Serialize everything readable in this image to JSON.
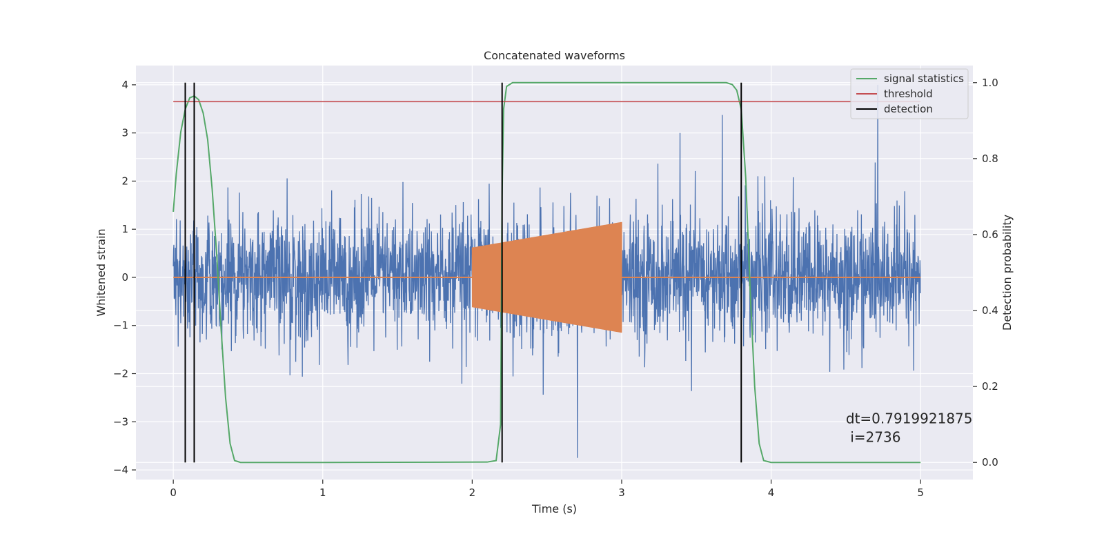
{
  "chart_data": {
    "type": "line",
    "title": "Concatenated waveforms",
    "xlabel": "Time (s)",
    "ylabel_left": "Whitened strain",
    "ylabel_right": "Detection probability",
    "xlim": [
      -0.25,
      5.35
    ],
    "ylim_left": [
      -4.2,
      4.4
    ],
    "ylim_right": [
      -0.045,
      1.045
    ],
    "x_ticks": [
      0,
      1,
      2,
      3,
      4,
      5
    ],
    "x_tick_labels": [
      "0",
      "1",
      "2",
      "3",
      "4",
      "5"
    ],
    "y_left_ticks": [
      -4,
      -3,
      -2,
      -1,
      0,
      1,
      2,
      3,
      4
    ],
    "y_left_tick_labels": [
      "−4",
      "−3",
      "−2",
      "−1",
      "0",
      "1",
      "2",
      "3",
      "4"
    ],
    "y_right_ticks": [
      0.0,
      0.2,
      0.4,
      0.6,
      0.8,
      1.0
    ],
    "y_right_tick_labels": [
      "0.0",
      "0.2",
      "0.4",
      "0.6",
      "0.8",
      "1.0"
    ],
    "grid": true,
    "legend_position": "top-right",
    "colors": {
      "background": "#eaeaf2",
      "grid": "#ffffff",
      "noise": "#4c72b0",
      "injection": "#dd8452",
      "signal_statistics": "#55a868",
      "threshold": "#c44e52",
      "detection": "#000000"
    },
    "series": [
      {
        "key": "noise",
        "axis": "left",
        "description_free": true,
        "x_range": [
          0,
          5
        ],
        "std": 0.62,
        "peak_max": 4.0,
        "peak_min": -3.75
      },
      {
        "key": "injection",
        "axis": "left",
        "segment": [
          2.0,
          3.0
        ],
        "amplitude_start": 0.62,
        "amplitude_end": 1.15
      },
      {
        "name": "signal statistics",
        "axis": "right",
        "points": [
          [
            0.0,
            0.66
          ],
          [
            0.02,
            0.76
          ],
          [
            0.05,
            0.87
          ],
          [
            0.08,
            0.93
          ],
          [
            0.11,
            0.96
          ],
          [
            0.14,
            0.965
          ],
          [
            0.17,
            0.955
          ],
          [
            0.2,
            0.92
          ],
          [
            0.23,
            0.85
          ],
          [
            0.26,
            0.72
          ],
          [
            0.29,
            0.55
          ],
          [
            0.32,
            0.35
          ],
          [
            0.35,
            0.17
          ],
          [
            0.38,
            0.05
          ],
          [
            0.41,
            0.005
          ],
          [
            0.45,
            0.0
          ],
          [
            1.0,
            0.0
          ],
          [
            2.1,
            0.001
          ],
          [
            2.16,
            0.005
          ],
          [
            2.19,
            0.1
          ],
          [
            2.2,
            0.7
          ],
          [
            2.21,
            0.93
          ],
          [
            2.23,
            0.99
          ],
          [
            2.27,
            1.0
          ],
          [
            3.7,
            1.0
          ],
          [
            3.74,
            0.995
          ],
          [
            3.77,
            0.98
          ],
          [
            3.8,
            0.93
          ],
          [
            3.83,
            0.75
          ],
          [
            3.86,
            0.45
          ],
          [
            3.89,
            0.2
          ],
          [
            3.92,
            0.05
          ],
          [
            3.95,
            0.005
          ],
          [
            4.0,
            0.0
          ],
          [
            5.0,
            0.0
          ]
        ]
      },
      {
        "name": "threshold",
        "axis": "right",
        "value": 0.95,
        "x_range": [
          0,
          5
        ]
      },
      {
        "name": "detection",
        "axis": "right",
        "x_positions": [
          0.08,
          0.14,
          2.2,
          3.8
        ],
        "y_range": [
          0.0,
          1.0
        ]
      }
    ],
    "legend": [
      "signal statistics",
      "threshold",
      "detection"
    ],
    "annotation": {
      "line1": "dt=0.7919921875",
      "line2": " i=2736",
      "x": 4.5,
      "y_left": -3.0
    }
  }
}
